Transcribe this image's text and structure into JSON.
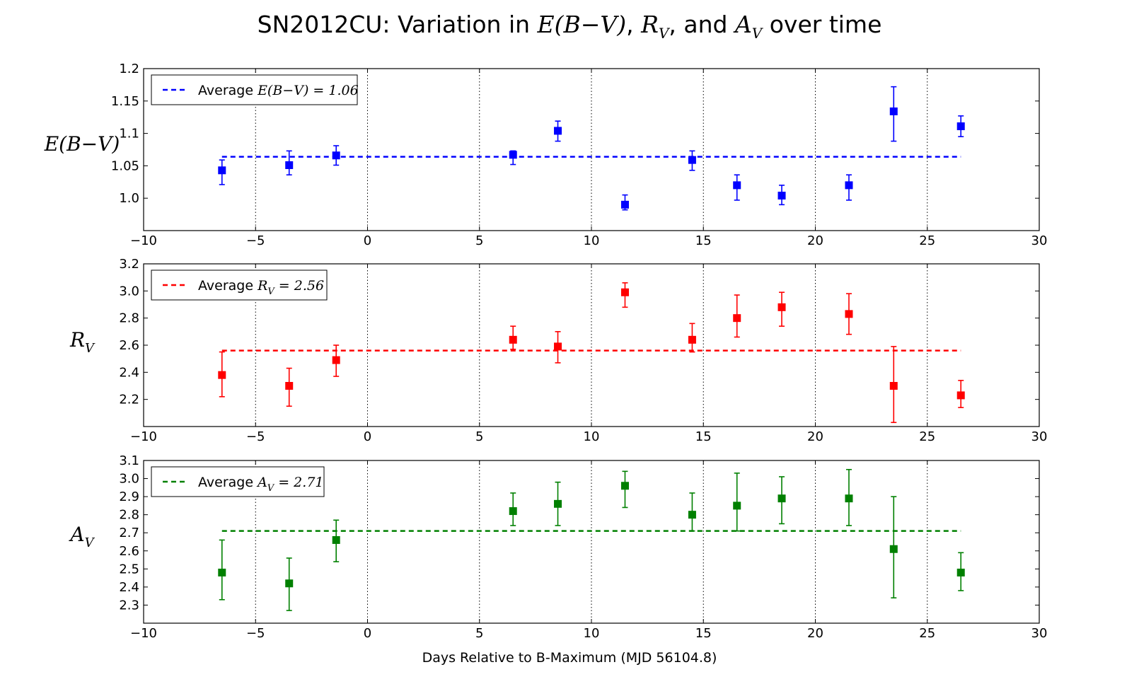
{
  "title": {
    "prefix": "SN2012CU: Variation in ",
    "e_bv": "E(B−V)",
    "sep1": ", ",
    "rv_main": "R",
    "rv_sub": "V",
    "sep2": ", and ",
    "av_main": "A",
    "av_sub": "V",
    "suffix": " over time"
  },
  "xlabel": "Days Relative to B-Maximum (MJD 56104.8)",
  "chart_data": [
    {
      "type": "scatter",
      "name": "E(B−V)",
      "ylabel_main": "E(B−V)",
      "ylabel_sub": "",
      "color": "#0000ff",
      "xlim": [
        -10,
        30
      ],
      "ylim": [
        0.95,
        1.2
      ],
      "xticks": [
        -10,
        -5,
        0,
        5,
        10,
        15,
        20,
        25,
        30
      ],
      "yticks": [
        1.0,
        1.05,
        1.1,
        1.15,
        1.2
      ],
      "ytick_labels": [
        "1.0",
        "1.05",
        "1.1",
        "1.15",
        "1.2"
      ],
      "grid": "vertical-dotted",
      "legend": {
        "position": "top-left",
        "prefix": "Average ",
        "math_main": "E(B−V)",
        "math_sub": "",
        "value_text": " = 1.06"
      },
      "average": 1.064,
      "average_x_range": [
        -6.5,
        26.5
      ],
      "points": [
        {
          "x": -6.5,
          "y": 1.043,
          "err_low": 0.022,
          "err_high": 0.016
        },
        {
          "x": -3.5,
          "y": 1.051,
          "err_low": 0.015,
          "err_high": 0.022
        },
        {
          "x": -1.4,
          "y": 1.066,
          "err_low": 0.015,
          "err_high": 0.015
        },
        {
          "x": 6.5,
          "y": 1.067,
          "err_low": 0.015,
          "err_high": 0.006
        },
        {
          "x": 8.5,
          "y": 1.104,
          "err_low": 0.016,
          "err_high": 0.015
        },
        {
          "x": 11.5,
          "y": 0.99,
          "err_low": 0.008,
          "err_high": 0.015
        },
        {
          "x": 14.5,
          "y": 1.059,
          "err_low": 0.016,
          "err_high": 0.014
        },
        {
          "x": 16.5,
          "y": 1.02,
          "err_low": 0.023,
          "err_high": 0.016
        },
        {
          "x": 18.5,
          "y": 1.004,
          "err_low": 0.014,
          "err_high": 0.016
        },
        {
          "x": 21.5,
          "y": 1.02,
          "err_low": 0.023,
          "err_high": 0.016
        },
        {
          "x": 23.5,
          "y": 1.134,
          "err_low": 0.046,
          "err_high": 0.038
        },
        {
          "x": 26.5,
          "y": 1.111,
          "err_low": 0.016,
          "err_high": 0.016
        }
      ]
    },
    {
      "type": "scatter",
      "name": "R_V",
      "ylabel_main": "R",
      "ylabel_sub": "V",
      "color": "#ff0000",
      "xlim": [
        -10,
        30
      ],
      "ylim": [
        2.0,
        3.2
      ],
      "xticks": [
        -10,
        -5,
        0,
        5,
        10,
        15,
        20,
        25,
        30
      ],
      "yticks": [
        2.2,
        2.4,
        2.6,
        2.8,
        3.0,
        3.2
      ],
      "ytick_labels": [
        "2.2",
        "2.4",
        "2.6",
        "2.8",
        "3.0",
        "3.2"
      ],
      "grid": "vertical-dotted",
      "legend": {
        "position": "top-left",
        "prefix": "Average ",
        "math_main": "R",
        "math_sub": "V",
        "value_text": " = 2.56"
      },
      "average": 2.56,
      "average_x_range": [
        -6.5,
        26.5
      ],
      "points": [
        {
          "x": -6.5,
          "y": 2.38,
          "err_low": 0.16,
          "err_high": 0.17
        },
        {
          "x": -3.5,
          "y": 2.3,
          "err_low": 0.15,
          "err_high": 0.13
        },
        {
          "x": -1.4,
          "y": 2.49,
          "err_low": 0.12,
          "err_high": 0.11
        },
        {
          "x": 6.5,
          "y": 2.64,
          "err_low": 0.07,
          "err_high": 0.1
        },
        {
          "x": 8.5,
          "y": 2.59,
          "err_low": 0.12,
          "err_high": 0.11
        },
        {
          "x": 11.5,
          "y": 2.99,
          "err_low": 0.11,
          "err_high": 0.07
        },
        {
          "x": 14.5,
          "y": 2.64,
          "err_low": 0.09,
          "err_high": 0.12
        },
        {
          "x": 16.5,
          "y": 2.8,
          "err_low": 0.14,
          "err_high": 0.17
        },
        {
          "x": 18.5,
          "y": 2.88,
          "err_low": 0.14,
          "err_high": 0.11
        },
        {
          "x": 21.5,
          "y": 2.83,
          "err_low": 0.15,
          "err_high": 0.15
        },
        {
          "x": 23.5,
          "y": 2.3,
          "err_low": 0.27,
          "err_high": 0.29
        },
        {
          "x": 26.5,
          "y": 2.23,
          "err_low": 0.09,
          "err_high": 0.11
        }
      ]
    },
    {
      "type": "scatter",
      "name": "A_V",
      "ylabel_main": "A",
      "ylabel_sub": "V",
      "color": "#008000",
      "xlim": [
        -10,
        30
      ],
      "ylim": [
        2.2,
        3.1
      ],
      "xticks": [
        -10,
        -5,
        0,
        5,
        10,
        15,
        20,
        25,
        30
      ],
      "yticks": [
        2.3,
        2.4,
        2.5,
        2.6,
        2.7,
        2.8,
        2.9,
        3.0,
        3.1
      ],
      "ytick_labels": [
        "2.3",
        "2.4",
        "2.5",
        "2.6",
        "2.7",
        "2.8",
        "2.9",
        "3.0",
        "3.1"
      ],
      "grid": "vertical-dotted",
      "legend": {
        "position": "top-left",
        "prefix": "Average ",
        "math_main": "A",
        "math_sub": "V",
        "value_text": " = 2.71"
      },
      "average": 2.71,
      "average_x_range": [
        -6.5,
        26.5
      ],
      "points": [
        {
          "x": -6.5,
          "y": 2.48,
          "err_low": 0.15,
          "err_high": 0.18
        },
        {
          "x": -3.5,
          "y": 2.42,
          "err_low": 0.15,
          "err_high": 0.14
        },
        {
          "x": -1.4,
          "y": 2.66,
          "err_low": 0.12,
          "err_high": 0.11
        },
        {
          "x": 6.5,
          "y": 2.82,
          "err_low": 0.08,
          "err_high": 0.1
        },
        {
          "x": 8.5,
          "y": 2.86,
          "err_low": 0.12,
          "err_high": 0.12
        },
        {
          "x": 11.5,
          "y": 2.96,
          "err_low": 0.12,
          "err_high": 0.08
        },
        {
          "x": 14.5,
          "y": 2.8,
          "err_low": 0.09,
          "err_high": 0.12
        },
        {
          "x": 16.5,
          "y": 2.85,
          "err_low": 0.14,
          "err_high": 0.18
        },
        {
          "x": 18.5,
          "y": 2.89,
          "err_low": 0.14,
          "err_high": 0.12
        },
        {
          "x": 21.5,
          "y": 2.89,
          "err_low": 0.15,
          "err_high": 0.16
        },
        {
          "x": 23.5,
          "y": 2.61,
          "err_low": 0.27,
          "err_high": 0.29
        },
        {
          "x": 26.5,
          "y": 2.48,
          "err_low": 0.1,
          "err_high": 0.11
        }
      ]
    }
  ]
}
